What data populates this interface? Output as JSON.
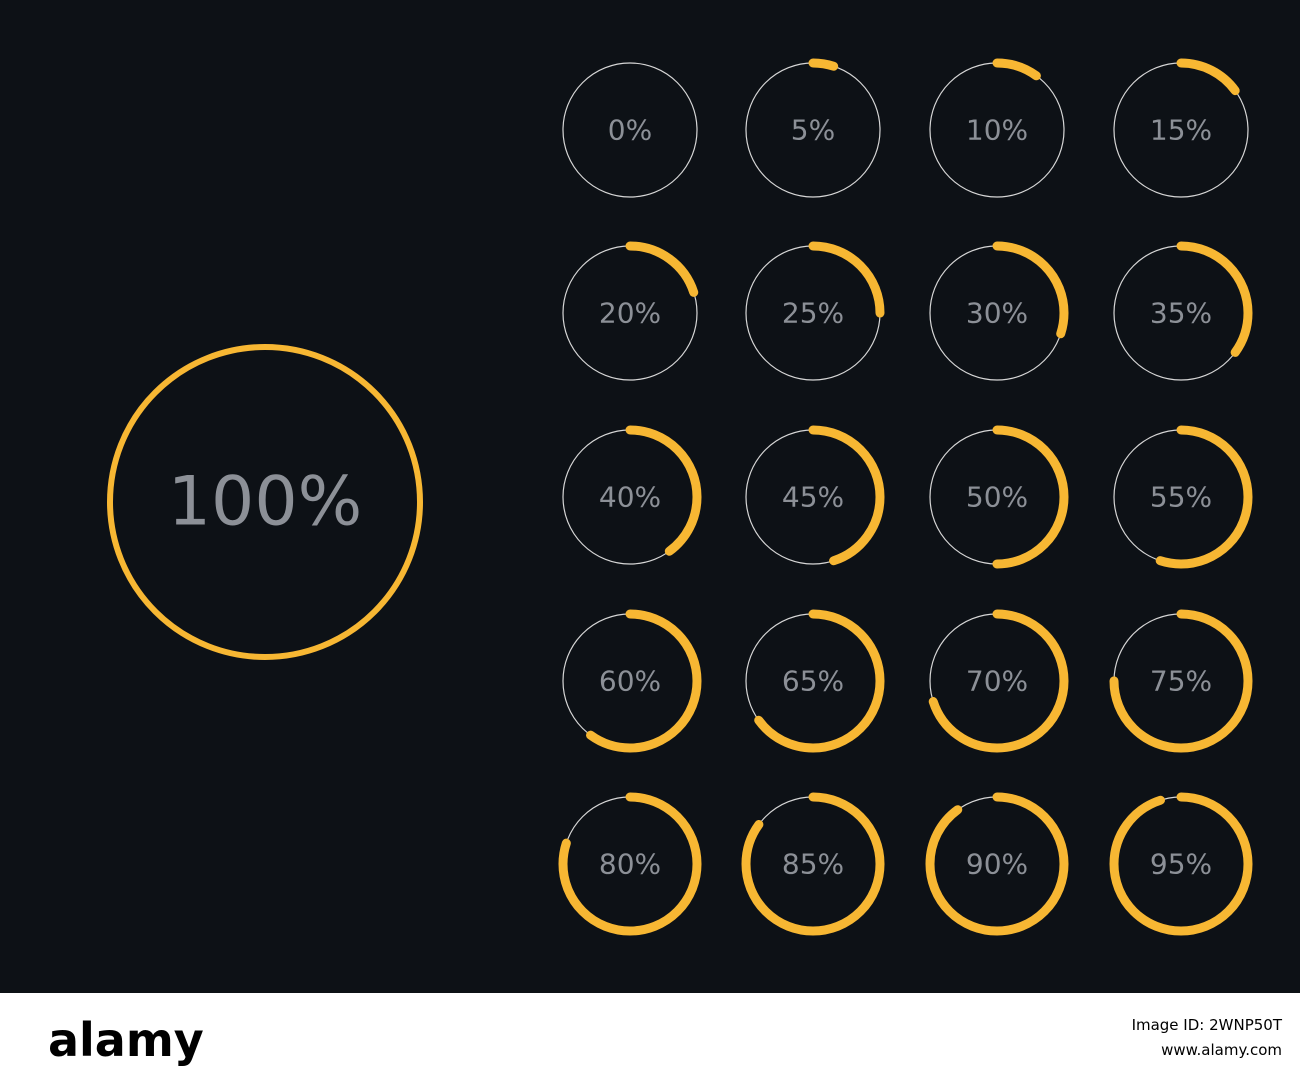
{
  "chart_data": {
    "type": "ring",
    "values": [
      100,
      0,
      5,
      10,
      15,
      20,
      25,
      30,
      35,
      40,
      45,
      50,
      55,
      60,
      65,
      70,
      75,
      80,
      85,
      90,
      95
    ],
    "value_labels": [
      "100%",
      "0%",
      "5%",
      "10%",
      "15%",
      "20%",
      "25%",
      "30%",
      "35%",
      "40%",
      "45%",
      "50%",
      "55%",
      "60%",
      "65%",
      "70%",
      "75%",
      "80%",
      "85%",
      "90%",
      "95%"
    ],
    "color": "#f7b733",
    "track_color": "#d6d6d6"
  },
  "footer": {
    "logo": "alamy",
    "image_id": "Image ID: 2WNP50T",
    "url": "www.alamy.com"
  }
}
